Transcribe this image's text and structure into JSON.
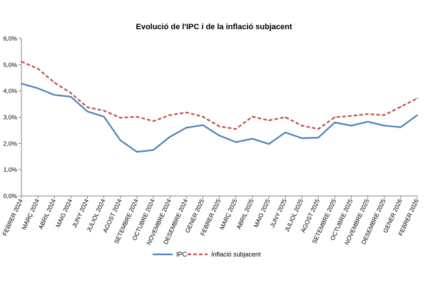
{
  "chart_data": {
    "type": "line",
    "title": "Evolució de l'IPC i de la inflació subjacent",
    "xlabel": "",
    "ylabel": "",
    "ylim": [
      0,
      6
    ],
    "y_ticks": [
      "0,0%",
      "1,0%",
      "2,0%",
      "3,0%",
      "4,0%",
      "5,0%",
      "6,0%"
    ],
    "grid": false,
    "legend_position": "bottom",
    "categories": [
      "FEBRER 2024",
      "MARÇ 2024",
      "ABRIL 2024",
      "MAIG 2024",
      "JUNY 2024",
      "JULIOL 2024",
      "AGOST 2024",
      "SETEMBRE 2024",
      "OCTUBRE 2024",
      "NOVEMBRE 2024",
      "DESEMBRE 2024",
      "GENER 2025",
      "FEBRER 2025",
      "MARÇ 2025",
      "ABRIL 2025",
      "MAIG 2025",
      "JUNY 2025",
      "JULIOL 2025",
      "AGOST 2025",
      "SETEMBRE 2025",
      "OCTUBRE 2025",
      "NOVEMBRE 2025",
      "DESEMBRE 2025",
      "GENER 2026",
      "FEBRER 2026"
    ],
    "series": [
      {
        "name": "IPC",
        "color": "#4f81bd",
        "style": "solid",
        "values": [
          4.28,
          4.1,
          3.85,
          3.78,
          3.22,
          3.02,
          2.12,
          1.68,
          1.75,
          2.25,
          2.6,
          2.7,
          2.3,
          2.05,
          2.18,
          1.98,
          2.42,
          2.2,
          2.22,
          2.8,
          2.68,
          2.83,
          2.68,
          2.62,
          3.08
        ]
      },
      {
        "name": "Inflació subjacent",
        "color": "#c0504d",
        "style": "dashed",
        "values": [
          5.12,
          4.85,
          4.32,
          3.92,
          3.38,
          3.25,
          2.98,
          3.02,
          2.85,
          3.08,
          3.18,
          3.02,
          2.65,
          2.55,
          3.02,
          2.88,
          3.0,
          2.68,
          2.55,
          3.0,
          3.05,
          3.12,
          3.08,
          3.4,
          3.72
        ]
      }
    ]
  }
}
